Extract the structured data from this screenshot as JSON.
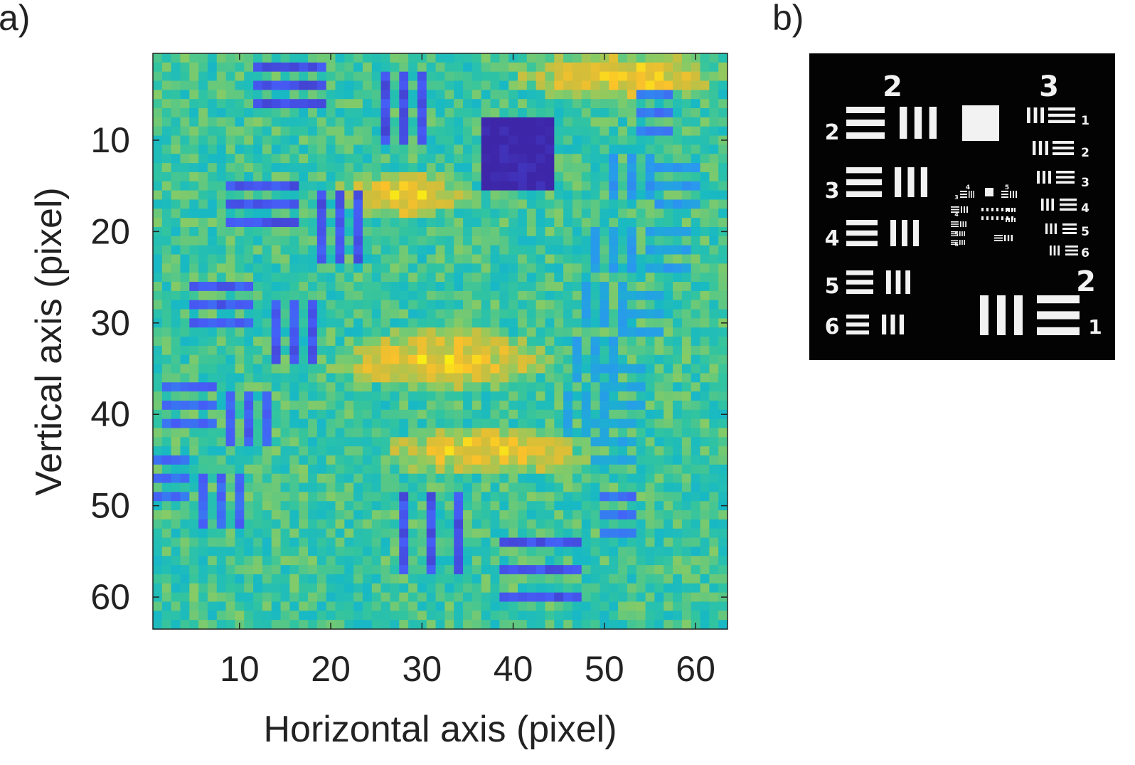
{
  "panels": {
    "a_label": "a)",
    "b_label": "b)"
  },
  "chart_data": {
    "type": "heatmap",
    "title": "",
    "xlabel": "Horizontal axis (pixel)",
    "ylabel": "Vertical axis (pixel)",
    "xlim": [
      0.5,
      63.5
    ],
    "ylim": [
      0.5,
      63.5
    ],
    "y_reversed": true,
    "xticks": [
      10,
      20,
      30,
      40,
      50,
      60
    ],
    "yticks": [
      10,
      20,
      30,
      40,
      50,
      60
    ],
    "grid": false,
    "colormap": "parula",
    "colors": {
      "low": "#3e26a8",
      "mid": "#23b9a8",
      "high": "#f9fb0e"
    },
    "grid_size": [
      63,
      63
    ],
    "value_range": [
      0,
      1
    ],
    "background_level": 0.55,
    "bright_band_level": 0.82,
    "feature_level": 0.1,
    "features": [
      {
        "kind": "square",
        "center": [
          40,
          11
        ],
        "half_size": 3.5,
        "level": 0.0
      },
      {
        "kind": "h-bars",
        "center": [
          15,
          4
        ],
        "len": 7,
        "count": 3,
        "spacing": 2,
        "level": 0.12
      },
      {
        "kind": "v-bars",
        "center": [
          28,
          6
        ],
        "len": 7,
        "count": 3,
        "spacing": 2,
        "level": 0.12
      },
      {
        "kind": "h-bars",
        "center": [
          12,
          17
        ],
        "len": 7,
        "count": 3,
        "spacing": 2,
        "level": 0.13
      },
      {
        "kind": "v-bars",
        "center": [
          21,
          19
        ],
        "len": 7,
        "count": 3,
        "spacing": 2,
        "level": 0.13
      },
      {
        "kind": "h-bars",
        "center": [
          8,
          28
        ],
        "len": 6,
        "count": 3,
        "spacing": 2,
        "level": 0.15
      },
      {
        "kind": "v-bars",
        "center": [
          16,
          31
        ],
        "len": 6,
        "count": 3,
        "spacing": 2,
        "level": 0.14
      },
      {
        "kind": "h-bars",
        "center": [
          4,
          39
        ],
        "len": 5,
        "count": 3,
        "spacing": 2,
        "level": 0.18
      },
      {
        "kind": "v-bars",
        "center": [
          11,
          40
        ],
        "len": 5,
        "count": 3,
        "spacing": 2,
        "level": 0.16
      },
      {
        "kind": "h-bars",
        "center": [
          2,
          47
        ],
        "len": 4,
        "count": 3,
        "spacing": 2,
        "level": 0.2
      },
      {
        "kind": "v-bars",
        "center": [
          8,
          49
        ],
        "len": 5,
        "count": 3,
        "spacing": 2,
        "level": 0.18
      },
      {
        "kind": "v-bars",
        "center": [
          31,
          53
        ],
        "len": 8,
        "count": 3,
        "spacing": 3,
        "level": 0.13
      },
      {
        "kind": "h-bars",
        "center": [
          43,
          57
        ],
        "len": 8,
        "count": 3,
        "spacing": 3,
        "level": 0.13
      },
      {
        "kind": "h-bars",
        "center": [
          55,
          7
        ],
        "len": 3,
        "count": 3,
        "spacing": 2,
        "level": 0.22
      },
      {
        "kind": "v-bars",
        "center": [
          53,
          14
        ],
        "len": 4,
        "count": 3,
        "spacing": 2,
        "level": 0.3
      },
      {
        "kind": "h-bars",
        "center": [
          58,
          15
        ],
        "len": 4,
        "count": 3,
        "spacing": 2,
        "level": 0.32
      },
      {
        "kind": "v-bars",
        "center": [
          51,
          22
        ],
        "len": 4,
        "count": 3,
        "spacing": 2,
        "level": 0.33
      },
      {
        "kind": "h-bars",
        "center": [
          57,
          22
        ],
        "len": 4,
        "count": 3,
        "spacing": 2,
        "level": 0.33
      },
      {
        "kind": "v-bars",
        "center": [
          50,
          28
        ],
        "len": 4,
        "count": 3,
        "spacing": 2,
        "level": 0.35
      },
      {
        "kind": "h-bars",
        "center": [
          54,
          29
        ],
        "len": 4,
        "count": 3,
        "spacing": 2,
        "level": 0.35
      },
      {
        "kind": "v-bars",
        "center": [
          49,
          34
        ],
        "len": 4,
        "count": 3,
        "spacing": 2,
        "level": 0.35
      },
      {
        "kind": "h-bars",
        "center": [
          52,
          37
        ],
        "len": 4,
        "count": 3,
        "spacing": 2,
        "level": 0.36
      },
      {
        "kind": "v-bars",
        "center": [
          48,
          40
        ],
        "len": 4,
        "count": 3,
        "spacing": 2,
        "level": 0.36
      },
      {
        "kind": "h-bars",
        "center": [
          51,
          43
        ],
        "len": 4,
        "count": 3,
        "spacing": 2,
        "level": 0.36
      },
      {
        "kind": "h-bars",
        "center": [
          51,
          51
        ],
        "len": 3,
        "count": 3,
        "spacing": 2,
        "level": 0.2
      }
    ],
    "bright_regions": [
      {
        "center": [
          32,
          34
        ],
        "radius": [
          13,
          3.5
        ]
      },
      {
        "center": [
          28,
          16
        ],
        "radius": [
          8,
          3
        ]
      },
      {
        "center": [
          52,
          3
        ],
        "radius": [
          12,
          3
        ]
      },
      {
        "center": [
          37,
          44
        ],
        "radius": [
          12,
          3
        ]
      }
    ]
  },
  "target_image": {
    "background_color": "#000000",
    "bar_color": "#f2f2f2",
    "group_labels": [
      "2",
      "3",
      "2"
    ],
    "element_labels_left": [
      "2",
      "3",
      "4",
      "5",
      "6"
    ],
    "element_labels_right": [
      "1",
      "2",
      "3",
      "4",
      "5",
      "6"
    ],
    "element_label_bottom_right": "1",
    "center_labels": [
      "4",
      "5",
      "3",
      "4",
      "5",
      "6"
    ]
  }
}
